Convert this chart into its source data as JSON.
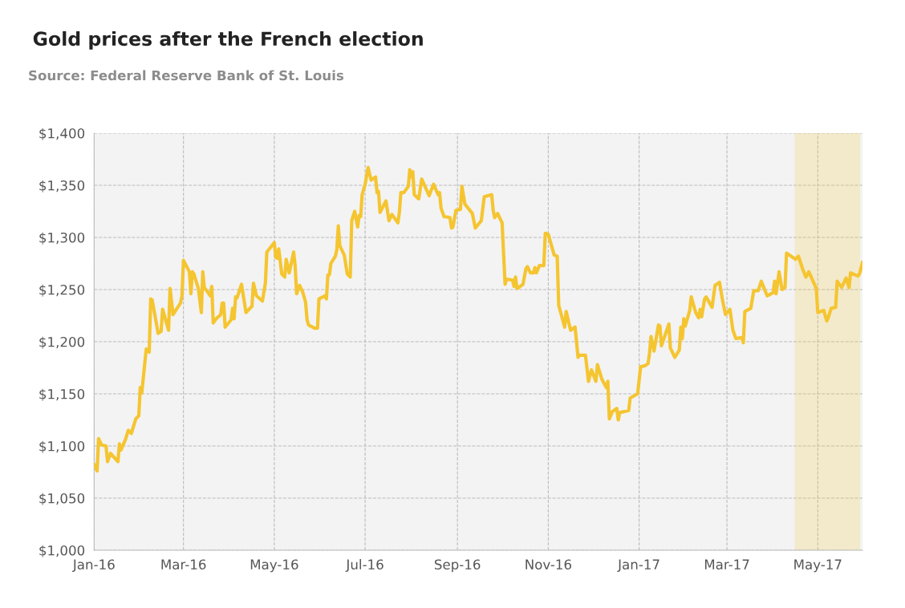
{
  "chart_data": {
    "type": "line",
    "title": "Gold prices after the French election",
    "annotations": [
      "Source: Federal Reserve Bank of St. Louis"
    ],
    "x": [
      "2016-01-01",
      "2016-01-03",
      "2016-01-04",
      "2016-01-06",
      "2016-01-09",
      "2016-01-10",
      "2016-01-12",
      "2016-01-17",
      "2016-01-18",
      "2016-01-19",
      "2016-01-22",
      "2016-01-24",
      "2016-01-26",
      "2016-01-29",
      "2016-01-31",
      "2016-02-01",
      "2016-02-02",
      "2016-02-05",
      "2016-02-07",
      "2016-02-08",
      "2016-02-09",
      "2016-02-13",
      "2016-02-15",
      "2016-02-16",
      "2016-02-20",
      "2016-02-21",
      "2016-02-23",
      "2016-02-28",
      "2016-02-29",
      "2016-03-01",
      "2016-03-05",
      "2016-03-06",
      "2016-03-07",
      "2016-03-08",
      "2016-03-11",
      "2016-03-13",
      "2016-03-14",
      "2016-03-15",
      "2016-03-19",
      "2016-03-20",
      "2016-03-21",
      "2016-03-23",
      "2016-03-26",
      "2016-03-27",
      "2016-03-28",
      "2016-03-29",
      "2016-04-02",
      "2016-04-03",
      "2016-04-04",
      "2016-04-05",
      "2016-04-06",
      "2016-04-09",
      "2016-04-12",
      "2016-04-16",
      "2016-04-17",
      "2016-04-19",
      "2016-04-23",
      "2016-04-25",
      "2016-04-26",
      "2016-05-01",
      "2016-05-02",
      "2016-05-03",
      "2016-05-04",
      "2016-05-06",
      "2016-05-08",
      "2016-05-09",
      "2016-05-11",
      "2016-05-14",
      "2016-05-15",
      "2016-05-16",
      "2016-05-18",
      "2016-05-20",
      "2016-05-22",
      "2016-05-23",
      "2016-05-24",
      "2016-05-28",
      "2016-05-30",
      "2016-05-31",
      "2016-06-04",
      "2016-06-05",
      "2016-06-06",
      "2016-06-07",
      "2016-06-08",
      "2016-06-11",
      "2016-06-12",
      "2016-06-13",
      "2016-06-14",
      "2016-06-17",
      "2016-06-19",
      "2016-06-21",
      "2016-06-22",
      "2016-06-24",
      "2016-06-26",
      "2016-06-27",
      "2016-06-28",
      "2016-06-29",
      "2016-07-01",
      "2016-07-03",
      "2016-07-05",
      "2016-07-08",
      "2016-07-09",
      "2016-07-10",
      "2016-07-11",
      "2016-07-15",
      "2016-07-17",
      "2016-07-19",
      "2016-07-23",
      "2016-07-24",
      "2016-07-25",
      "2016-07-27",
      "2016-07-30",
      "2016-07-31",
      "2016-08-01",
      "2016-08-02",
      "2016-08-03",
      "2016-08-06",
      "2016-08-08",
      "2016-08-13",
      "2016-08-14",
      "2016-08-16",
      "2016-08-19",
      "2016-08-20",
      "2016-08-21",
      "2016-08-23",
      "2016-08-27",
      "2016-08-28",
      "2016-08-29",
      "2016-08-31",
      "2016-09-03",
      "2016-09-04",
      "2016-09-06",
      "2016-09-11",
      "2016-09-13",
      "2016-09-17",
      "2016-09-19",
      "2016-09-24",
      "2016-09-25",
      "2016-09-26",
      "2016-09-28",
      "2016-10-01",
      "2016-10-02",
      "2016-10-03",
      "2016-10-04",
      "2016-10-08",
      "2016-10-09",
      "2016-10-10",
      "2016-10-11",
      "2016-10-15",
      "2016-10-17",
      "2016-10-18",
      "2016-10-20",
      "2016-10-22",
      "2016-10-23",
      "2016-10-24",
      "2016-10-26",
      "2016-10-29",
      "2016-10-30",
      "2016-11-01",
      "2016-11-05",
      "2016-11-07",
      "2016-11-08",
      "2016-11-12",
      "2016-11-13",
      "2016-11-16",
      "2016-11-19",
      "2016-11-21",
      "2016-11-22",
      "2016-11-26",
      "2016-11-28",
      "2016-11-30",
      "2016-12-03",
      "2016-12-04",
      "2016-12-07",
      "2016-12-10",
      "2016-12-11",
      "2016-12-12",
      "2016-12-14",
      "2016-12-17",
      "2016-12-18",
      "2016-12-19",
      "2016-12-25",
      "2016-12-26",
      "2016-12-31",
      "2017-01-02",
      "2017-01-05",
      "2017-01-07",
      "2017-01-08",
      "2017-01-09",
      "2017-01-11",
      "2017-01-14",
      "2017-01-15",
      "2017-01-16",
      "2017-01-21",
      "2017-01-22",
      "2017-01-25",
      "2017-01-28",
      "2017-01-29",
      "2017-01-30",
      "2017-01-31",
      "2017-02-01",
      "2017-02-04",
      "2017-02-05",
      "2017-02-08",
      "2017-02-10",
      "2017-02-11",
      "2017-02-12",
      "2017-02-14",
      "2017-02-15",
      "2017-02-19",
      "2017-02-21",
      "2017-02-24",
      "2017-02-26",
      "2017-02-28",
      "2017-03-03",
      "2017-03-05",
      "2017-03-07",
      "2017-03-11",
      "2017-03-12",
      "2017-03-13",
      "2017-03-17",
      "2017-03-19",
      "2017-03-22",
      "2017-03-24",
      "2017-03-28",
      "2017-04-01",
      "2017-04-02",
      "2017-04-03",
      "2017-04-05",
      "2017-04-07",
      "2017-04-09",
      "2017-04-10",
      "2017-04-16",
      "2017-04-18",
      "2017-04-21",
      "2017-04-23",
      "2017-04-25",
      "2017-04-30",
      "2017-05-01",
      "2017-05-05",
      "2017-05-07",
      "2017-05-08",
      "2017-05-10",
      "2017-05-13",
      "2017-05-14",
      "2017-05-17",
      "2017-05-20",
      "2017-05-22",
      "2017-05-23",
      "2017-05-28",
      "2017-05-29",
      "2017-05-31"
    ],
    "series": [
      {
        "color": "#f5c531",
        "values": [
          1082,
          1076,
          1107,
          1101,
          1100,
          1085,
          1093,
          1085,
          1102,
          1096,
          1106,
          1115,
          1112,
          1126,
          1129,
          1156,
          1151,
          1193,
          1190,
          1241,
          1240,
          1208,
          1210,
          1231,
          1211,
          1251,
          1226,
          1237,
          1244,
          1278,
          1267,
          1246,
          1267,
          1265,
          1251,
          1228,
          1267,
          1252,
          1244,
          1253,
          1218,
          1222,
          1226,
          1237,
          1237,
          1214,
          1221,
          1232,
          1222,
          1243,
          1242,
          1255,
          1228,
          1234,
          1256,
          1244,
          1239,
          1256,
          1286,
          1295,
          1281,
          1280,
          1289,
          1265,
          1262,
          1279,
          1266,
          1286,
          1273,
          1246,
          1254,
          1248,
          1238,
          1221,
          1216,
          1213,
          1213,
          1241,
          1244,
          1241,
          1264,
          1264,
          1275,
          1282,
          1288,
          1311,
          1292,
          1283,
          1265,
          1262,
          1316,
          1325,
          1310,
          1321,
          1320,
          1341,
          1351,
          1367,
          1355,
          1358,
          1343,
          1344,
          1324,
          1335,
          1316,
          1322,
          1314,
          1324,
          1343,
          1343,
          1349,
          1365,
          1358,
          1363,
          1341,
          1337,
          1356,
          1340,
          1344,
          1351,
          1341,
          1343,
          1328,
          1320,
          1319,
          1309,
          1310,
          1326,
          1327,
          1349,
          1332,
          1323,
          1309,
          1316,
          1339,
          1341,
          1326,
          1319,
          1323,
          1314,
          1284,
          1255,
          1260,
          1259,
          1253,
          1262,
          1251,
          1255,
          1270,
          1272,
          1266,
          1266,
          1271,
          1266,
          1273,
          1273,
          1304,
          1303,
          1283,
          1282,
          1235,
          1214,
          1229,
          1211,
          1214,
          1185,
          1187,
          1187,
          1162,
          1173,
          1162,
          1178,
          1164,
          1156,
          1162,
          1126,
          1133,
          1136,
          1125,
          1132,
          1134,
          1146,
          1150,
          1176,
          1177,
          1179,
          1189,
          1205,
          1191,
          1216,
          1215,
          1196,
          1217,
          1194,
          1185,
          1192,
          1214,
          1203,
          1222,
          1215,
          1230,
          1243,
          1228,
          1223,
          1231,
          1224,
          1241,
          1243,
          1233,
          1254,
          1257,
          1240,
          1226,
          1231,
          1211,
          1203,
          1204,
          1199,
          1229,
          1232,
          1249,
          1249,
          1258,
          1244,
          1247,
          1258,
          1246,
          1267,
          1250,
          1252,
          1285,
          1279,
          1282,
          1269,
          1262,
          1267,
          1251,
          1228,
          1230,
          1220,
          1223,
          1232,
          1233,
          1258,
          1252,
          1261,
          1252,
          1266,
          1263,
          1265,
          1276
        ]
      }
    ],
    "xlim": [
      "2016-01-01",
      "2017-05-31"
    ],
    "xticks": [
      {
        "value": "2016-01-01",
        "label": "Jan-16"
      },
      {
        "value": "2016-03-01",
        "label": "Mar-16"
      },
      {
        "value": "2016-05-01",
        "label": "May-16"
      },
      {
        "value": "2016-07-01",
        "label": "Jul-16"
      },
      {
        "value": "2016-09-01",
        "label": "Sep-16"
      },
      {
        "value": "2016-11-01",
        "label": "Nov-16"
      },
      {
        "value": "2017-01-01",
        "label": "Jan-17"
      },
      {
        "value": "2017-03-01",
        "label": "Mar-17"
      },
      {
        "value": "2017-05-01",
        "label": "May-17"
      }
    ],
    "ylim": [
      1000,
      1400
    ],
    "yticks": [
      {
        "value": 1000,
        "label": "$1,000"
      },
      {
        "value": 1050,
        "label": "$1,050"
      },
      {
        "value": 1100,
        "label": "$1,100"
      },
      {
        "value": 1150,
        "label": "$1,150"
      },
      {
        "value": 1200,
        "label": "$1,200"
      },
      {
        "value": 1250,
        "label": "$1,250"
      },
      {
        "value": 1300,
        "label": "$1,300"
      },
      {
        "value": 1350,
        "label": "$1,350"
      },
      {
        "value": 1400,
        "label": "$1,400"
      }
    ],
    "bands": [
      {
        "axis": "x",
        "from": "2017-04-16",
        "to": "2017-05-29",
        "color": "#f5c531"
      }
    ],
    "grid": true,
    "legend": false,
    "marker": "none",
    "line_style": "solid"
  }
}
